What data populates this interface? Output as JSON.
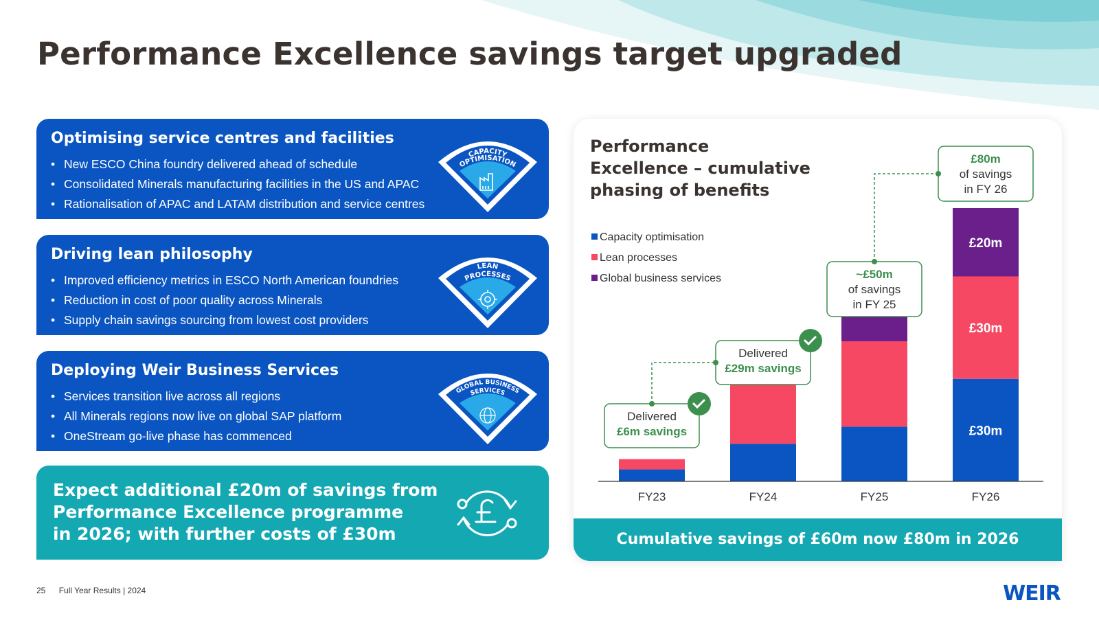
{
  "title": "Performance Excellence savings target upgraded",
  "colors": {
    "card_blue": "#0a55c1",
    "teal": "#14a8b3",
    "capacity": "#0a55c1",
    "lean": "#f64862",
    "global": "#6a1f8a",
    "delivered_green": "#3c8f4d"
  },
  "cards": [
    {
      "heading": "Optimising service centres and facilities",
      "bullets": [
        "New ESCO China foundry delivered ahead of schedule",
        "Consolidated Minerals manufacturing facilities in the US and APAC",
        "Rationalisation of APAC and LATAM distribution and service centres"
      ],
      "badge_line1": "CAPACITY",
      "badge_line2": "OPTIMISATION",
      "icon": "factory-icon"
    },
    {
      "heading": "Driving lean philosophy",
      "bullets": [
        "Improved efficiency metrics in ESCO North American foundries",
        "Reduction in cost of poor quality across Minerals",
        "Supply chain savings sourcing from lowest cost providers"
      ],
      "badge_line1": "LEAN",
      "badge_line2": "PROCESSES",
      "icon": "gear-cycle-icon"
    },
    {
      "heading": "Deploying Weir Business Services",
      "bullets": [
        "Services transition live across all regions",
        "All Minerals regions now live on global SAP platform",
        "OneStream go-live phase has commenced"
      ],
      "badge_line1": "GLOBAL BUSINESS",
      "badge_line2": "SERVICES",
      "icon": "network-globe-icon"
    }
  ],
  "teal_card": {
    "lines": [
      "Expect additional £20m of savings from",
      "Performance Excellence programme",
      "in 2026; with further costs of £30m"
    ],
    "icon": "pound-cycle-icon"
  },
  "panel": {
    "title_lines": [
      "Performance",
      "Excellence – cumulative",
      "phasing of benefits"
    ],
    "footer": "Cumulative savings of £60m now £80m in 2026"
  },
  "chart_data": {
    "type": "bar",
    "stacked": true,
    "title": "Performance Excellence – cumulative phasing of benefits",
    "categories": [
      "FY23",
      "FY24",
      "FY25",
      "FY26"
    ],
    "series": [
      {
        "name": "Capacity optimisation",
        "color": "#0a55c1",
        "values": [
          3.5,
          11,
          16,
          30
        ]
      },
      {
        "name": "Lean processes",
        "color": "#f64862",
        "values": [
          3,
          17.5,
          25,
          30
        ]
      },
      {
        "name": "Global business services",
        "color": "#6a1f8a",
        "values": [
          0,
          1.5,
          9,
          20
        ]
      }
    ],
    "segment_labels": {
      "FY26": [
        "£30m",
        "£30m",
        "£20m"
      ]
    },
    "legend_position": "top-left",
    "ylim": [
      0,
      80
    ],
    "grid": false,
    "callouts": [
      {
        "category": "FY23",
        "line1": "Delivered",
        "line2": "£6m savings",
        "delivered": true
      },
      {
        "category": "FY24",
        "line1": "Delivered",
        "line2": "£29m savings",
        "delivered": true
      },
      {
        "category": "FY25",
        "line1": "~£50m",
        "line2": "of savings",
        "line3": "in FY 25",
        "delivered": false
      },
      {
        "category": "FY26",
        "line1": "£80m",
        "line2": "of savings",
        "line3": "in FY 26",
        "delivered": false
      }
    ]
  },
  "footer": {
    "page": "25",
    "text": "Full Year Results | 2024",
    "logo": "WEIR"
  }
}
